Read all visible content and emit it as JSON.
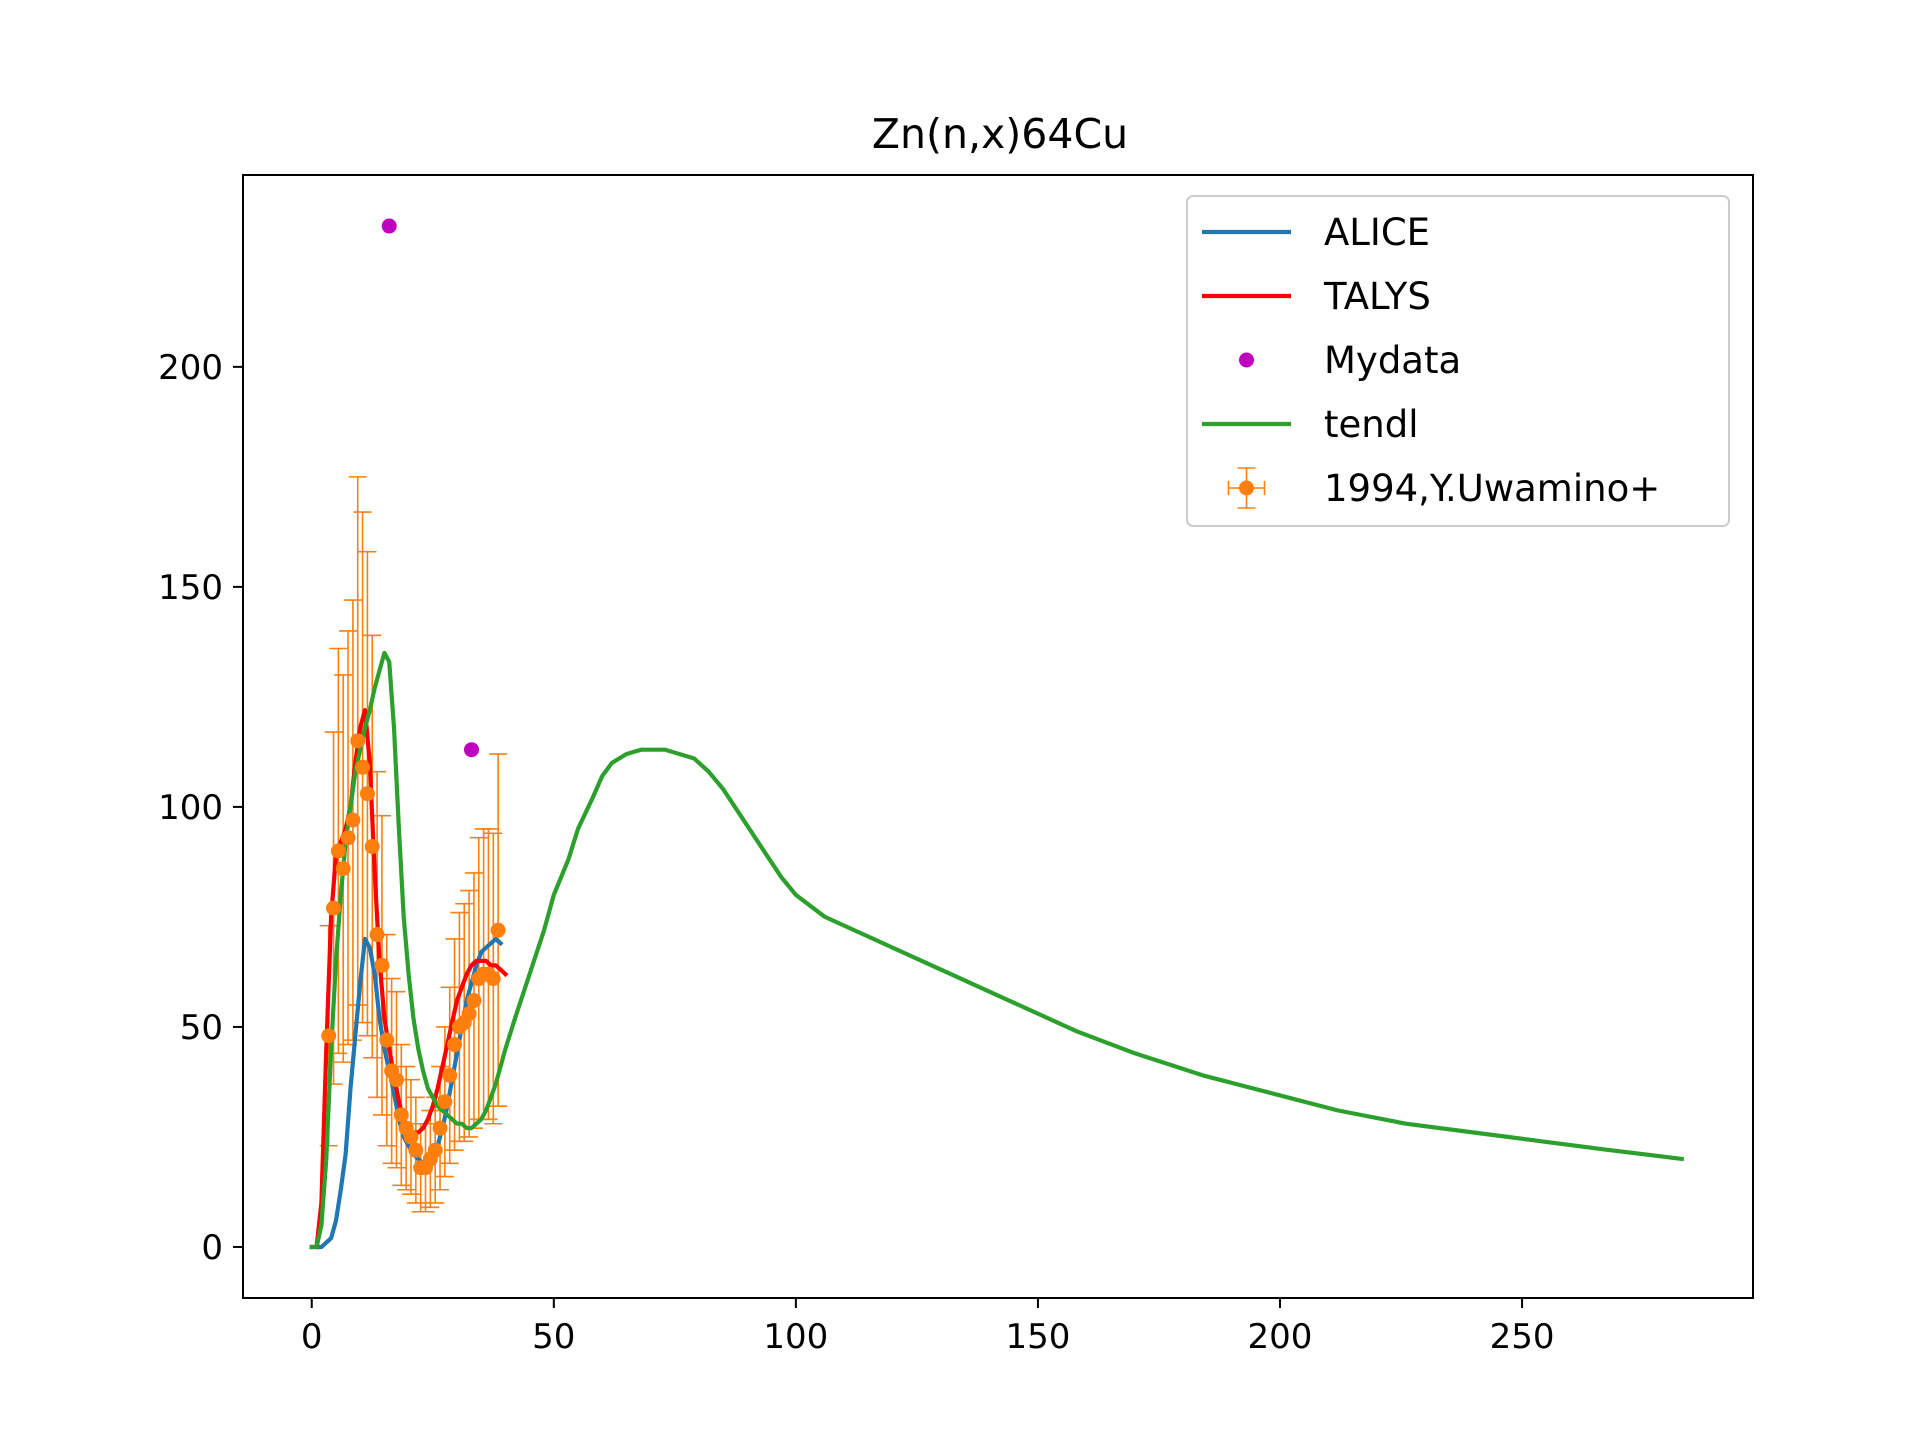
{
  "chart_data": {
    "type": "line",
    "title": "Zn(n,x)64Cu",
    "xlabel": "",
    "ylabel": "",
    "xlim": [
      -14.2,
      297.7
    ],
    "ylim": [
      -11.6,
      243.6
    ],
    "xticks": [
      0,
      50,
      100,
      150,
      200,
      250
    ],
    "yticks": [
      0,
      50,
      100,
      150,
      200
    ],
    "grid": false,
    "legend_position": "top-right",
    "series": [
      {
        "name": "ALICE",
        "kind": "line",
        "color": "#1f77b4",
        "x": [
          0,
          1,
          2,
          3,
          4,
          5,
          6,
          7,
          8,
          9,
          10,
          11,
          12,
          13,
          14,
          15,
          16,
          17,
          18,
          19,
          20,
          21,
          22,
          23,
          24,
          25,
          26,
          27,
          28,
          29,
          30,
          31,
          32,
          33,
          34,
          35,
          36,
          37,
          38,
          39
        ],
        "y": [
          0,
          0,
          0,
          1,
          2,
          6,
          13,
          21,
          36,
          48,
          60,
          70,
          68,
          62,
          52,
          45,
          40,
          35,
          29,
          25,
          23,
          21,
          20,
          19,
          20,
          21,
          23,
          27,
          32,
          38,
          44,
          50,
          56,
          60,
          64,
          67,
          68,
          69,
          70,
          69
        ]
      },
      {
        "name": "TALYS",
        "kind": "line",
        "color": "#ff0000",
        "x": [
          1,
          2,
          3,
          4,
          5,
          6,
          7,
          8,
          9,
          10,
          11,
          12,
          13,
          14,
          15,
          16,
          17,
          18,
          19,
          20,
          21,
          22,
          23,
          24,
          25,
          26,
          27,
          28,
          29,
          30,
          31,
          32,
          33,
          34,
          35,
          36,
          37,
          38,
          39,
          40
        ],
        "y": [
          0,
          10,
          45,
          75,
          89,
          92,
          95,
          100,
          110,
          118,
          122,
          110,
          85,
          65,
          52,
          45,
          39,
          33,
          29,
          27,
          26,
          26,
          27,
          29,
          32,
          36,
          41,
          46,
          51,
          56,
          59,
          62,
          64,
          65,
          65,
          65,
          64,
          64,
          63,
          62
        ]
      },
      {
        "name": "Mydata",
        "kind": "marker",
        "color": "#bf00bf",
        "x": [
          16,
          33
        ],
        "y": [
          232,
          113
        ]
      },
      {
        "name": "tendl",
        "kind": "line",
        "color": "#2ca02c",
        "x": [
          0,
          1,
          2,
          3,
          4,
          5,
          6,
          7,
          8,
          9,
          10,
          11,
          12,
          13,
          14,
          15,
          16,
          17,
          18,
          19,
          20,
          21,
          22,
          23,
          24,
          25,
          26,
          27,
          28,
          29,
          30,
          31,
          32,
          33,
          34,
          35,
          36,
          37,
          38,
          40,
          42,
          45,
          48,
          50,
          53,
          55,
          58,
          60,
          62,
          65,
          68,
          70,
          73,
          76,
          79,
          82,
          85,
          88,
          91,
          94,
          97,
          100,
          106,
          114,
          130,
          146,
          158,
          170,
          184,
          198,
          212,
          226,
          240,
          254,
          268,
          283
        ],
        "y": [
          0,
          0,
          5,
          20,
          45,
          65,
          80,
          92,
          100,
          108,
          113,
          118,
          122,
          127,
          131,
          135,
          133,
          118,
          95,
          75,
          62,
          52,
          45,
          40,
          36,
          34,
          32,
          31,
          30,
          29,
          28,
          28,
          27,
          27,
          28,
          29,
          31,
          34,
          37,
          45,
          52,
          62,
          72,
          80,
          88,
          95,
          102,
          107,
          110,
          112,
          113,
          113,
          113,
          112,
          111,
          108,
          104,
          99,
          94,
          89,
          84,
          80,
          75,
          71,
          63,
          55,
          49,
          44,
          39,
          35,
          31,
          28,
          26,
          24,
          22,
          20
        ]
      },
      {
        "name": "1994,Y.Uwamino+",
        "kind": "errorbar",
        "color": "#ff7f0e",
        "x": [
          3.5,
          4.5,
          5.5,
          6.5,
          7.5,
          8.5,
          9.5,
          10.5,
          11.5,
          12.5,
          13.5,
          14.5,
          15.5,
          16.5,
          17.5,
          18.5,
          19.5,
          20.5,
          21.5,
          22.5,
          23.5,
          24.5,
          25.5,
          26.5,
          27.5,
          28.5,
          29.5,
          30.5,
          31.5,
          32.5,
          33.5,
          34.5,
          35.5,
          36.5,
          37.5,
          38.5
        ],
        "y": [
          48,
          77,
          90,
          86,
          93,
          97,
          115,
          109,
          103,
          91,
          71,
          64,
          47,
          40,
          38,
          30,
          27,
          25,
          22,
          18,
          18,
          20,
          22,
          27,
          33,
          39,
          46,
          50,
          51,
          53,
          56,
          61,
          62,
          62,
          61,
          72
        ],
        "yerr": [
          25,
          40,
          46,
          44,
          47,
          50,
          60,
          58,
          55,
          48,
          37,
          34,
          24,
          21,
          20,
          16,
          14,
          13,
          12,
          10,
          10,
          11,
          12,
          14,
          17,
          20,
          24,
          26,
          27,
          28,
          29,
          32,
          33,
          33,
          33,
          40
        ],
        "xerr": [
          0.5,
          0.5,
          0.5,
          0.5,
          0.5,
          0.5,
          0.5,
          0.5,
          0.5,
          0.5,
          0.5,
          0.5,
          0.5,
          0.5,
          0.5,
          0.5,
          0.5,
          0.5,
          0.5,
          0.5,
          0.5,
          0.5,
          0.5,
          0.5,
          0.5,
          0.5,
          0.5,
          0.5,
          0.5,
          0.5,
          0.5,
          0.5,
          0.5,
          0.5,
          0.5,
          0.5
        ]
      }
    ]
  }
}
